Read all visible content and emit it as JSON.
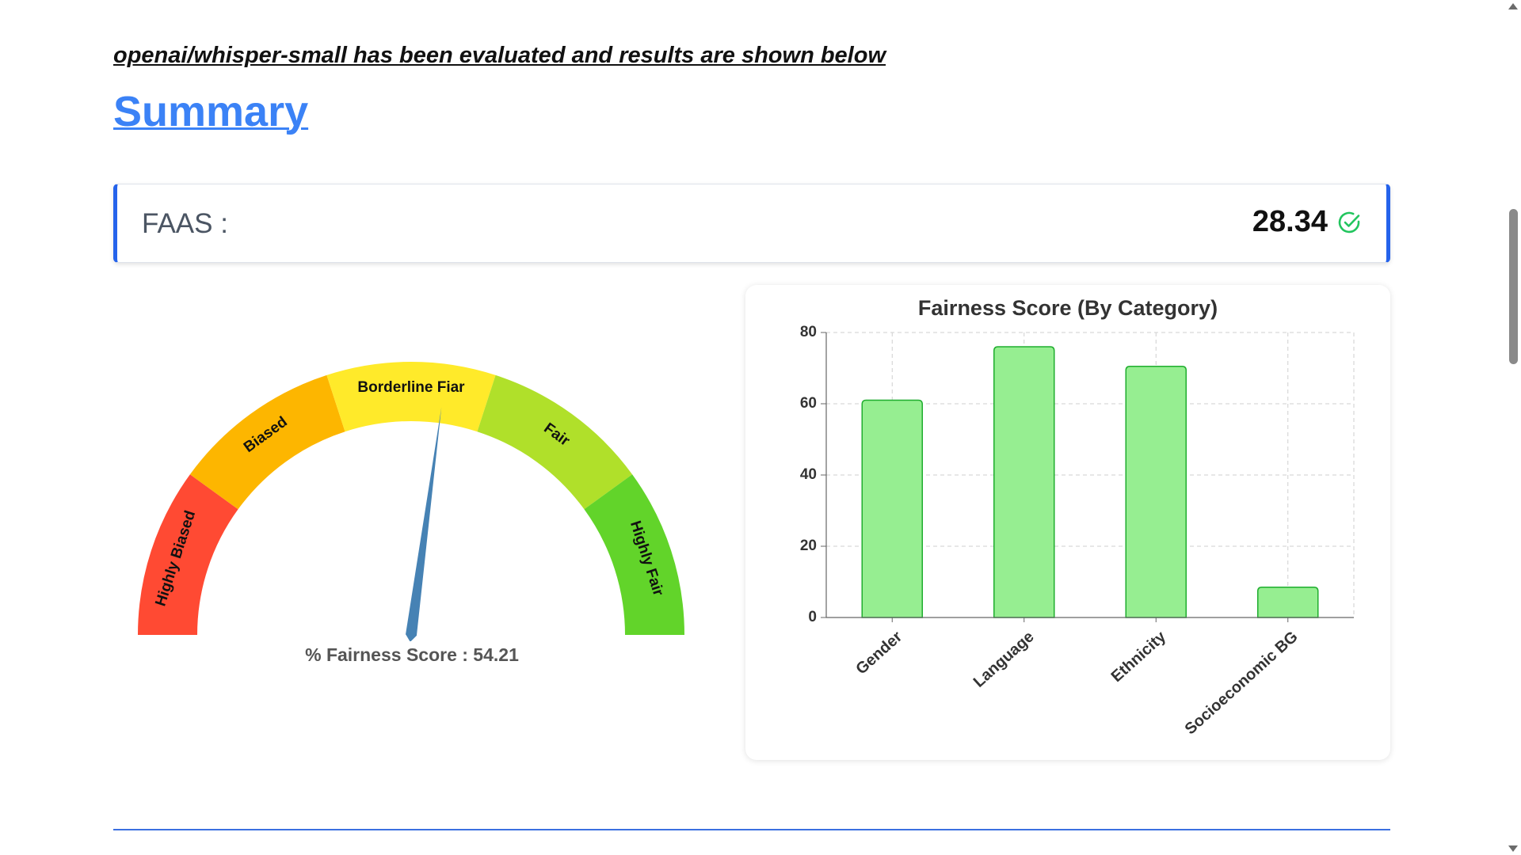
{
  "header": {
    "evaluation_text": "openai/whisper-small has been evaluated and results are shown below",
    "summary_heading": "Summary"
  },
  "faas": {
    "label": "FAAS :",
    "value": "28.34",
    "status_icon": "check-circle-icon",
    "status_color": "#22c55e",
    "accent_color": "#2563eb"
  },
  "gauge": {
    "caption": "% Fairness Score : 54.21",
    "score": 54.21,
    "min": 0,
    "max": 100,
    "needle_color": "#4682b4",
    "segments": [
      {
        "label": "Highly Biased",
        "color": "#ff4a33"
      },
      {
        "label": "Biased",
        "color": "#fdb600"
      },
      {
        "label": "Borderline Fiar",
        "color": "#ffea2a"
      },
      {
        "label": "Fair",
        "color": "#b0e02a"
      },
      {
        "label": "Highly Fair",
        "color": "#62d42a"
      }
    ]
  },
  "chart_data": {
    "type": "bar",
    "title": "Fairness Score (By Category)",
    "categories": [
      "Gender",
      "Language",
      "Ethnicity",
      "Socioeconomic BG"
    ],
    "values": [
      61,
      76,
      70.5,
      8.5
    ],
    "ylim": [
      0,
      80
    ],
    "yticks": [
      0,
      20,
      40,
      60,
      80
    ],
    "grid": true,
    "bar_fill": "#96ee91",
    "bar_stroke": "#1fad2e"
  }
}
